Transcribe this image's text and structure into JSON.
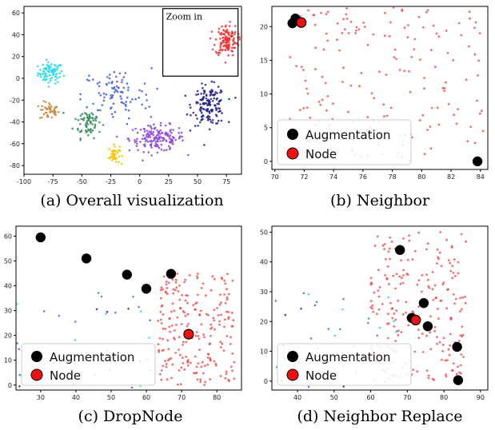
{
  "figure": {
    "captions": {
      "a": "(a) Overall visualization",
      "b": "(b) Neighbor",
      "c": "(c) DropNode",
      "d": "(d) Neighbor Replace"
    },
    "zoom_label": "Zoom in",
    "legend": {
      "augmentation": "Augmentation",
      "node": "Node"
    }
  },
  "colors": {
    "augmentation": "#000000",
    "node": "#ee1111",
    "red_points": "#ee3333",
    "cluster_cyan": "#22d8e8",
    "cluster_orange": "#c8873c",
    "cluster_green": "#2e8b57",
    "cluster_yellow": "#f2c400",
    "cluster_purple": "#8a44d8",
    "cluster_navy": "#1f1f8a",
    "cluster_blue": "#3d5bd9"
  },
  "chart_data": [
    {
      "panel": "a",
      "type": "scatter",
      "title": "",
      "xlabel": "",
      "ylabel": "",
      "xlim": [
        -100,
        88
      ],
      "ylim": [
        -88,
        66
      ],
      "xticks": [
        -100,
        -75,
        -50,
        -25,
        0,
        25,
        50,
        75
      ],
      "yticks": [
        -80,
        -60,
        -40,
        -20,
        0,
        20,
        40,
        60
      ],
      "grid": false,
      "clusters": [
        {
          "name": "",
          "color": "cluster_cyan",
          "center": [
            -77,
            5
          ],
          "spread": [
            9,
            8
          ],
          "count": 80
        },
        {
          "name": "",
          "color": "cluster_orange",
          "center": [
            -78,
            -30
          ],
          "spread": [
            7,
            7
          ],
          "count": 45
        },
        {
          "name": "",
          "color": "cluster_green",
          "center": [
            -45,
            -40
          ],
          "spread": [
            10,
            12
          ],
          "count": 70
        },
        {
          "name": "",
          "color": "cluster_yellow",
          "center": [
            -22,
            -70
          ],
          "spread": [
            4,
            7
          ],
          "count": 45
        },
        {
          "name": "",
          "color": "cluster_purple",
          "center": [
            15,
            -55
          ],
          "spread": [
            20,
            10
          ],
          "count": 160
        },
        {
          "name": "",
          "color": "cluster_navy",
          "center": [
            60,
            -25
          ],
          "spread": [
            12,
            15
          ],
          "count": 150
        },
        {
          "name": "",
          "color": "cluster_blue",
          "center": [
            -20,
            -15
          ],
          "spread": [
            25,
            20
          ],
          "count": 90
        },
        {
          "name": "",
          "color": "red_points",
          "center": [
            75,
            35
          ],
          "spread": [
            8,
            12
          ],
          "count": 130
        }
      ],
      "zoom_box": {
        "x": [
          20,
          85
        ],
        "y": [
          2,
          64
        ]
      }
    },
    {
      "panel": "b",
      "type": "scatter",
      "title": "",
      "xlim": [
        69.8,
        84.5
      ],
      "ylim": [
        -1.2,
        23
      ],
      "xticks": [
        70,
        72,
        74,
        76,
        78,
        80,
        82,
        84
      ],
      "yticks": [
        0,
        5,
        10,
        15,
        20
      ],
      "grid": false,
      "series": [
        {
          "name": "Augmentation",
          "color": "augmentation",
          "points": [
            [
              71.2,
              20.5
            ],
            [
              71.4,
              21.2
            ],
            [
              83.8,
              0.0
            ]
          ]
        },
        {
          "name": "Node",
          "color": "node",
          "points": [
            [
              71.8,
              20.6
            ]
          ]
        }
      ],
      "background_points": {
        "color": "red_points",
        "x_range": [
          71,
          84.5
        ],
        "y_range": [
          0,
          23
        ],
        "count": 180
      }
    },
    {
      "panel": "c",
      "type": "scatter",
      "title": "",
      "xlim": [
        23,
        87
      ],
      "ylim": [
        -2,
        64
      ],
      "xticks": [
        30,
        40,
        50,
        60,
        70,
        80
      ],
      "yticks": [
        0,
        10,
        20,
        30,
        40,
        50,
        60
      ],
      "grid": false,
      "series": [
        {
          "name": "Augmentation",
          "color": "augmentation",
          "points": [
            [
              30,
              59.5
            ],
            [
              43,
              51
            ],
            [
              54.5,
              44.5
            ],
            [
              60,
              38.8
            ],
            [
              67,
              44.8
            ]
          ]
        },
        {
          "name": "Node",
          "color": "node",
          "points": [
            [
              72,
              20.5
            ]
          ]
        }
      ],
      "background_points": {
        "color": "red_points",
        "x_range": [
          63,
          85
        ],
        "y_range": [
          0,
          45
        ],
        "count": 220
      }
    },
    {
      "panel": "d",
      "type": "scatter",
      "title": "",
      "xlim": [
        33,
        92
      ],
      "ylim": [
        -3,
        52
      ],
      "xticks": [
        40,
        50,
        60,
        70,
        80,
        90
      ],
      "yticks": [
        0,
        10,
        20,
        30,
        40,
        50
      ],
      "grid": false,
      "series": [
        {
          "name": "Augmentation",
          "color": "augmentation",
          "points": [
            [
              68,
              44
            ],
            [
              74.5,
              26.2
            ],
            [
              71.2,
              21.2
            ],
            [
              75.6,
              18.4
            ],
            [
              83.6,
              11.5
            ],
            [
              83.9,
              0.3
            ]
          ]
        },
        {
          "name": "Node",
          "color": "node",
          "points": [
            [
              72.3,
              20.5
            ]
          ]
        }
      ],
      "background_points": {
        "color": "red_points",
        "x_range": [
          60,
          86
        ],
        "y_range": [
          0,
          50
        ],
        "count": 220
      }
    }
  ]
}
